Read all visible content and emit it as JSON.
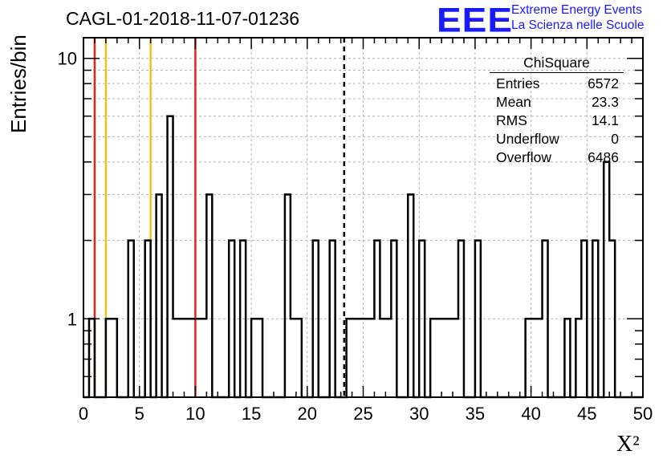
{
  "header": {
    "title": "CAGL-01-2018-11-07-01236",
    "logo_letters": "EEE",
    "logo_line1": "Extreme Energy Events",
    "logo_line2": "La Scienza nelle Scuole"
  },
  "axes": {
    "ylabel": "Entries/bin",
    "xlabel": "X²"
  },
  "stats_box": {
    "title": "ChiSquare",
    "rows": [
      {
        "label": "Entries",
        "value": "6572"
      },
      {
        "label": "Mean",
        "value": "23.3"
      },
      {
        "label": "RMS",
        "value": "14.1"
      },
      {
        "label": "Underflow",
        "value": "0"
      },
      {
        "label": "Overflow",
        "value": "6486"
      }
    ]
  },
  "colors": {
    "red_line": "#e8221a",
    "yellow_line": "#f2c21a",
    "logo_blue": "#1a1aff",
    "histogram": "#000000",
    "grid": "#b4b4b4"
  },
  "chart_data": {
    "type": "histogram",
    "title": "CAGL-01-2018-11-07-01236",
    "xlabel": "X²",
    "ylabel": "Entries/bin",
    "xlim": [
      0,
      50
    ],
    "ylim": [
      0.5,
      12
    ],
    "yscale": "log",
    "grid": true,
    "bin_width": 0.5,
    "bin_edges_start": 0,
    "x_ticks": [
      0,
      5,
      10,
      15,
      20,
      25,
      30,
      35,
      40,
      45,
      50
    ],
    "y_ticks": [
      1,
      10
    ],
    "counts": [
      0,
      1,
      0,
      0,
      1,
      1,
      0,
      0,
      0,
      0,
      0,
      2,
      0,
      0,
      0,
      0,
      1,
      1,
      1,
      1,
      1,
      1,
      1,
      0,
      0,
      0,
      0,
      0,
      0,
      0,
      1,
      1,
      0,
      0,
      0,
      0,
      0,
      1,
      0,
      0,
      0,
      2,
      0,
      0,
      0,
      0,
      0,
      1,
      1,
      1,
      1,
      1,
      0,
      1,
      1,
      1,
      0,
      0,
      1,
      0,
      0,
      0,
      1,
      1,
      1,
      1,
      1,
      0,
      0,
      0,
      1,
      0,
      0,
      0,
      0,
      0,
      0,
      0,
      0,
      1,
      1,
      1,
      1,
      0,
      0,
      0,
      1,
      0,
      1,
      0,
      0,
      2,
      0,
      0,
      0,
      0,
      0,
      0
    ],
    "counts_overrides": [
      {
        "x": 4.0,
        "count": 2
      },
      {
        "x": 6.5,
        "count": 3
      },
      {
        "x": 7.5,
        "count": 6
      },
      {
        "x": 8.0,
        "count": 1
      },
      {
        "x": 11.0,
        "count": 3
      },
      {
        "x": 13.0,
        "count": 2
      },
      {
        "x": 14.0,
        "count": 2
      },
      {
        "x": 18.0,
        "count": 3
      },
      {
        "x": 19.0,
        "count": 1
      },
      {
        "x": 22.0,
        "count": 2
      },
      {
        "x": 26.0,
        "count": 2
      },
      {
        "x": 27.5,
        "count": 2
      },
      {
        "x": 29.0,
        "count": 3
      },
      {
        "x": 30.0,
        "count": 2
      },
      {
        "x": 33.5,
        "count": 2
      },
      {
        "x": 35.0,
        "count": 2
      },
      {
        "x": 41.0,
        "count": 2
      },
      {
        "x": 44.5,
        "count": 2
      },
      {
        "x": 46.5,
        "count": 4
      },
      {
        "x": 47.0,
        "count": 2
      }
    ],
    "vertical_lines": [
      {
        "x": 1.0,
        "color": "#e8221a",
        "style": "solid"
      },
      {
        "x": 2.0,
        "color": "#f2c21a",
        "style": "solid"
      },
      {
        "x": 6.0,
        "color": "#f2c21a",
        "style": "solid"
      },
      {
        "x": 10.0,
        "color": "#e8221a",
        "style": "solid"
      },
      {
        "x": 23.3,
        "color": "#000000",
        "style": "dashed"
      }
    ]
  }
}
